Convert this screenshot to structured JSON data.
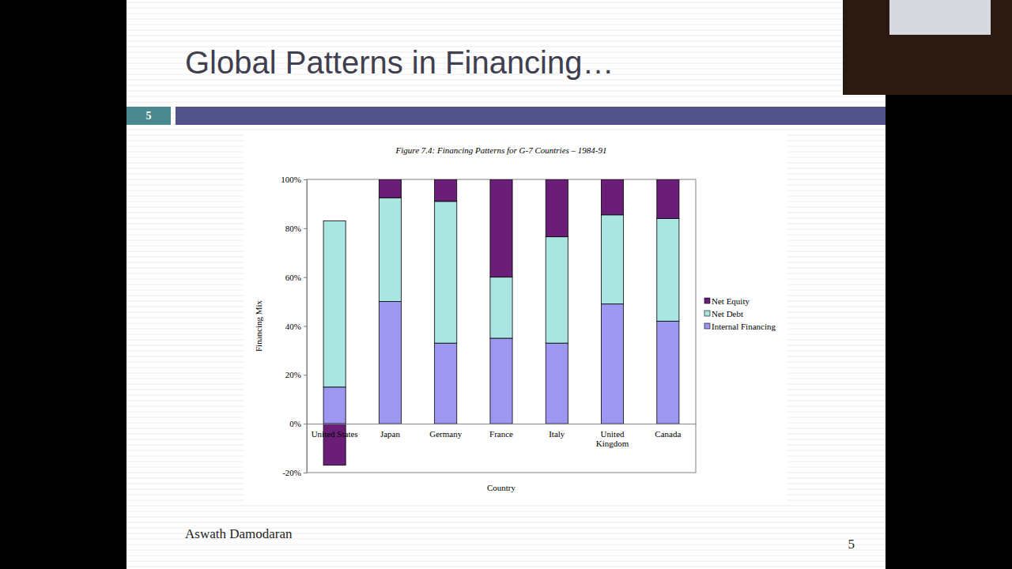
{
  "slide": {
    "title": "Global Patterns in Financing…",
    "number": "5",
    "author": "Aswath Damodaran",
    "page": "5"
  },
  "chart_data": {
    "type": "bar",
    "title": "Figure 7.4: Financing Patterns for G-7 Countries – 1984-91",
    "x_label": "Country",
    "y_label": "Financing Mix",
    "categories": [
      "United States",
      "Japan",
      "Germany",
      "France",
      "Italy",
      "United Kingdom",
      "Canada"
    ],
    "series": [
      {
        "name": "Internal Financing",
        "color": "#9d97f2",
        "values": [
          15,
          50,
          33,
          35,
          33,
          49,
          42
        ]
      },
      {
        "name": "Net Debt",
        "color": "#a9e5e1",
        "values": [
          68,
          42.5,
          58,
          25,
          43.5,
          36.5,
          42
        ]
      },
      {
        "name": "Net Equity",
        "color": "#6a1e78",
        "values": [
          -17,
          7.5,
          9,
          40,
          23.5,
          14.5,
          16
        ]
      }
    ],
    "stacked": true,
    "grid": false,
    "legend": "right",
    "ylim": [
      -20,
      100
    ],
    "yticks": [
      {
        "value": -20,
        "label": "-20%"
      },
      {
        "value": 0,
        "label": "0%"
      },
      {
        "value": 20,
        "label": "20%"
      },
      {
        "value": 40,
        "label": "40%"
      },
      {
        "value": 60,
        "label": "60%"
      },
      {
        "value": 80,
        "label": "80%"
      },
      {
        "value": 100,
        "label": "100%"
      }
    ]
  }
}
